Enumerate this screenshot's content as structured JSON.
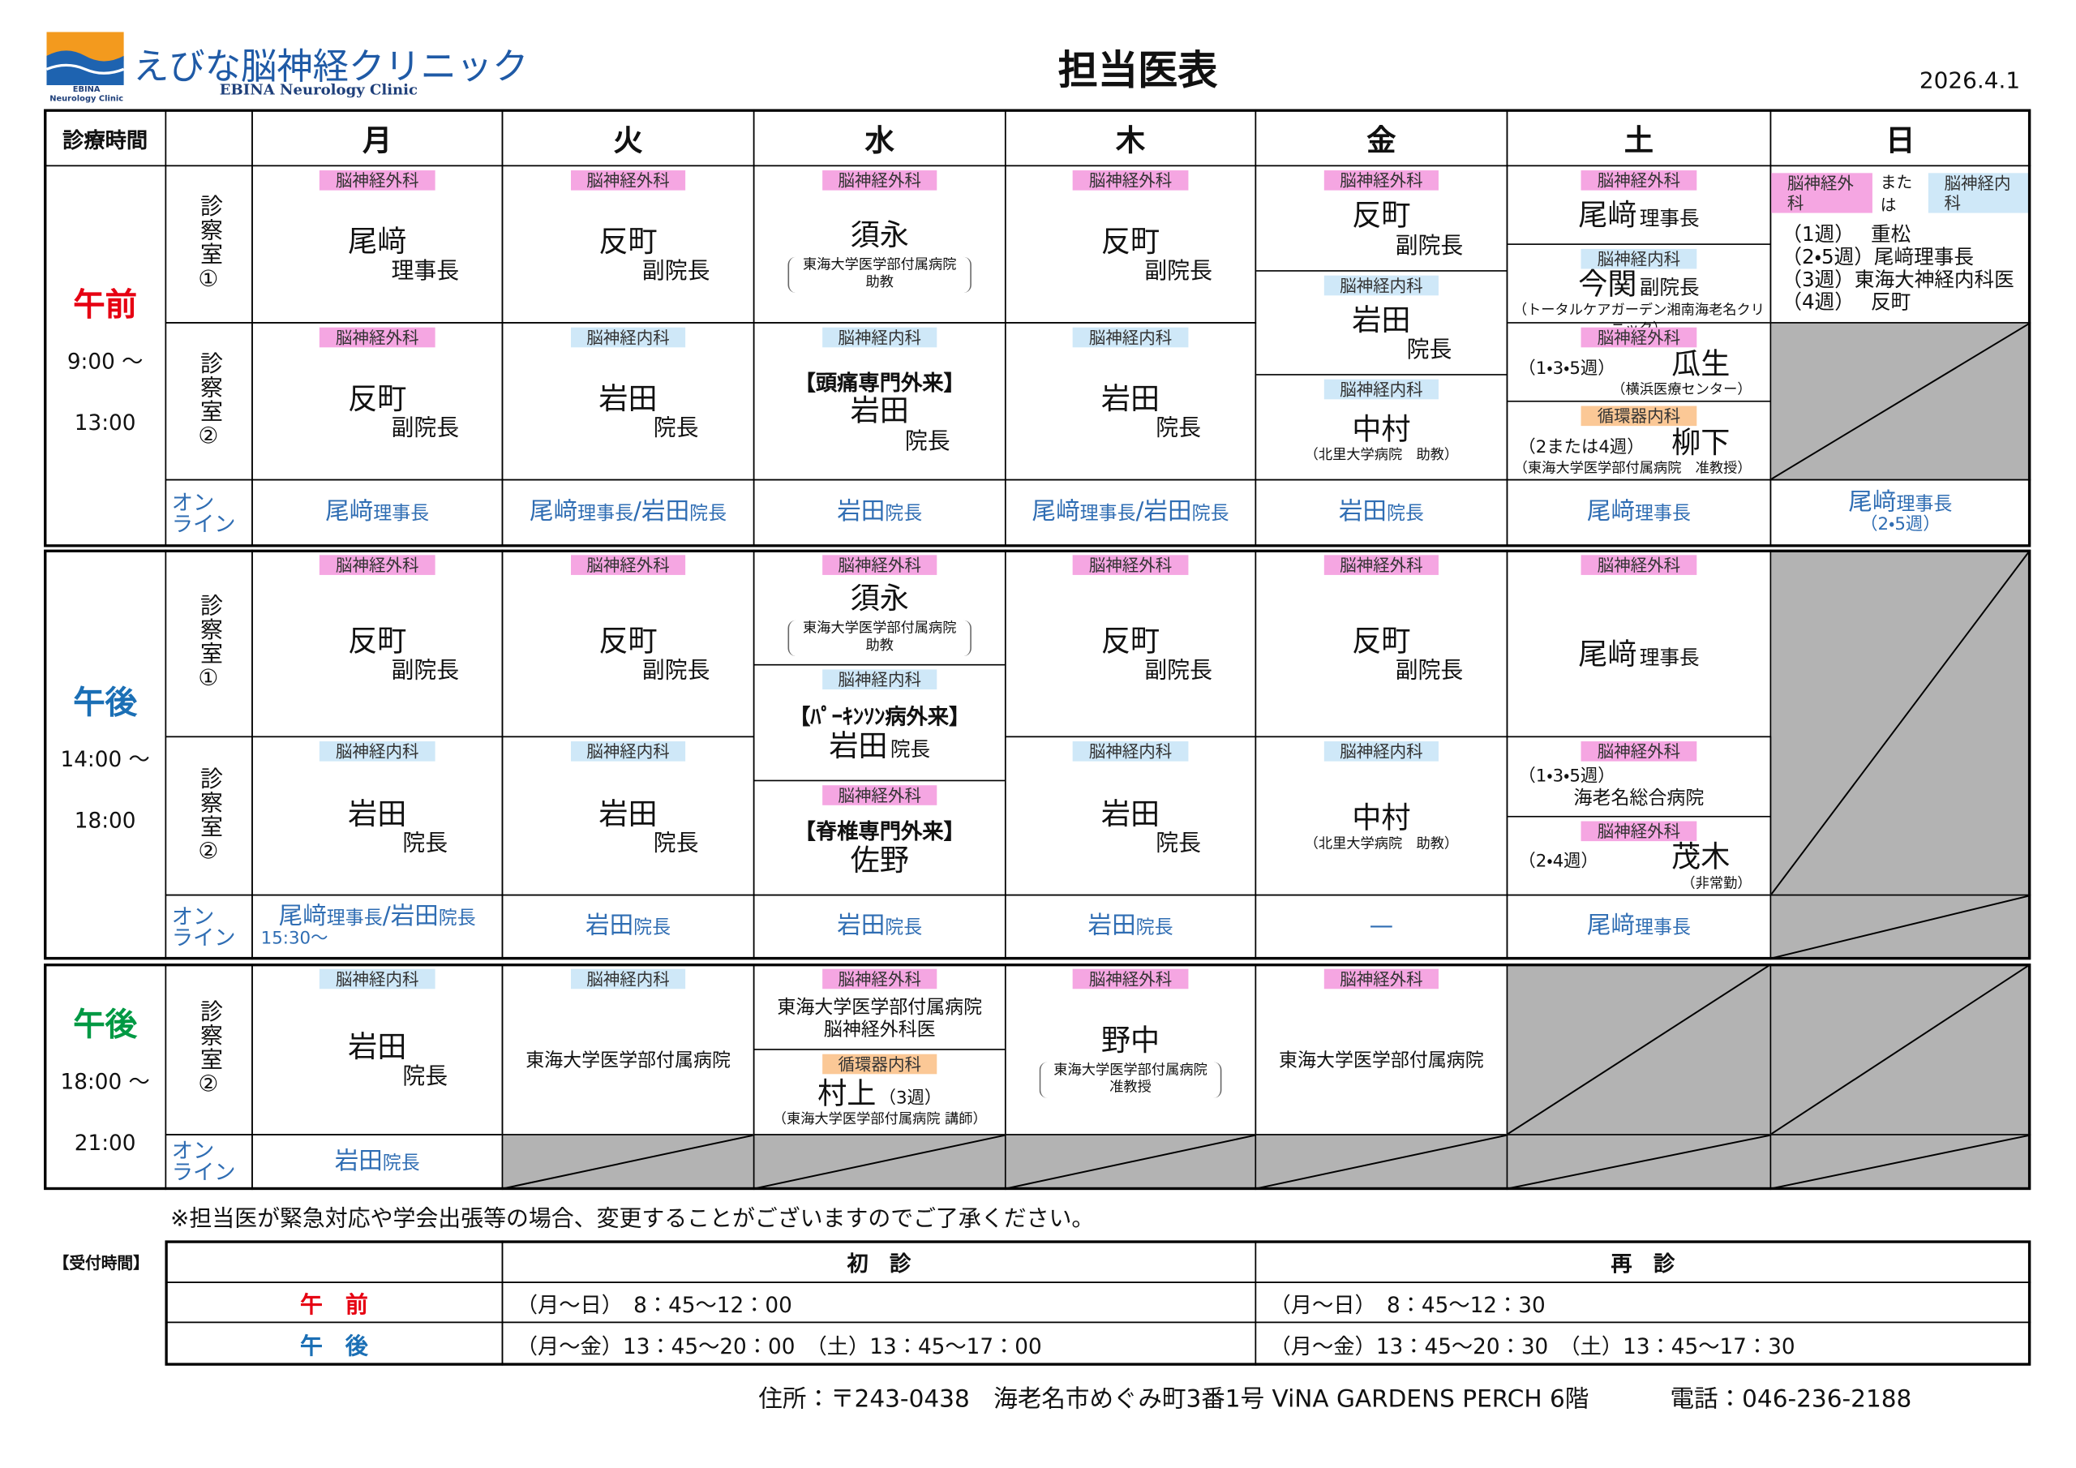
{
  "header": {
    "clinic_name": "えびな脳神経クリニック",
    "clinic_name_en": "EBINA Neurology Clinic",
    "logo_text": [
      "EBINA",
      "Neurology Clinic"
    ],
    "title": "担当医表",
    "date": "2026.4.1"
  },
  "department_colors": {
    "脳神経外科": "#f5a6e2",
    "脳神経内科": "#cfe8f8",
    "循環器内科": "#fbc896"
  },
  "table": {
    "corner": "診療時間",
    "days": [
      "月",
      "火",
      "水",
      "木",
      "金",
      "土",
      "日"
    ],
    "blocks": [
      {
        "label": "午前",
        "color": "#e60012",
        "times": [
          "9:00 ～",
          "13:00"
        ],
        "rooms": [
          {
            "label": "診察室①",
            "cells": [
              {
                "sections": [
                  {
                    "dept": "脳神経外科",
                    "name": "尾﨑",
                    "title": "理事長"
                  }
                ]
              },
              {
                "sections": [
                  {
                    "dept": "脳神経外科",
                    "name": "反町",
                    "title": "副院長"
                  }
                ]
              },
              {
                "sections": [
                  {
                    "dept": "脳神経外科",
                    "name": "須永",
                    "note": [
                      "東海大学医学部付属病院",
                      "助教"
                    ]
                  }
                ]
              },
              {
                "sections": [
                  {
                    "dept": "脳神経外科",
                    "name": "反町",
                    "title": "副院長"
                  }
                ]
              },
              {
                "rowspan": 2,
                "sections": [
                  {
                    "dept": "脳神経外科",
                    "name": "反町",
                    "title": "副院長"
                  },
                  {
                    "dept": "脳神経内科",
                    "name": "岩田",
                    "title": "院長"
                  },
                  {
                    "dept": "脳神経内科",
                    "name": "中村",
                    "note": [
                      "（北里大学病院　助教）"
                    ]
                  }
                ]
              },
              {
                "rowspan": 2,
                "sections": [
                  {
                    "dept": "脳神経外科",
                    "name": "尾﨑",
                    "title_inline": "理事長"
                  },
                  {
                    "dept": "脳神経内科",
                    "name": "今関",
                    "title_inline": "副院長",
                    "note": [
                      "（トータルケアガーデン湘南海老名クリニック）"
                    ]
                  },
                  {
                    "dept": "脳神経外科",
                    "prefix": "（1・3・5週）",
                    "name": "瓜生",
                    "note": [
                      "（横浜医療センター）"
                    ]
                  },
                  {
                    "dept": "循環器内科",
                    "prefix": "（2または4週）",
                    "name": "柳下",
                    "note": [
                      "（東海大学医学部付属病院　准教授）"
                    ]
                  }
                ]
              },
              {
                "sections": [
                  {
                    "dept": "脳神経外科",
                    "or": "または",
                    "dept2": "脳神経内科",
                    "lines": [
                      "（1週）　 重松",
                      "（2・5週）尾﨑理事長",
                      "（3週）東海大神経内科医",
                      "（4週）　 反町"
                    ]
                  }
                ]
              }
            ]
          },
          {
            "label": "診察室②",
            "cells": [
              {
                "sections": [
                  {
                    "dept": "脳神経外科",
                    "name": "反町",
                    "title": "副院長"
                  }
                ]
              },
              {
                "sections": [
                  {
                    "dept": "脳神経内科",
                    "name": "岩田",
                    "title": "院長"
                  }
                ]
              },
              {
                "sections": [
                  {
                    "dept": "脳神経内科",
                    "clinic": "【頭痛専門外来】",
                    "name": "岩田",
                    "title": "院長"
                  }
                ]
              },
              {
                "sections": [
                  {
                    "dept": "脳神経内科",
                    "name": "岩田",
                    "title": "院長"
                  }
                ]
              },
              null,
              null,
              null
            ]
          }
        ],
        "online": {
          "label": [
            "オン",
            "ライン"
          ],
          "cells": [
            {
              "segments": [
                {
                  "name": "尾﨑",
                  "title": "理事長"
                }
              ]
            },
            {
              "segments": [
                {
                  "name": "尾﨑",
                  "title": "理事長"
                },
                {
                  "name": "/"
                },
                {
                  "name": "岩田",
                  "title": "院長"
                }
              ]
            },
            {
              "segments": [
                {
                  "name": "岩田",
                  "title": "院長"
                }
              ]
            },
            {
              "segments": [
                {
                  "name": "尾﨑",
                  "title": "理事長"
                },
                {
                  "name": "/"
                },
                {
                  "name": "岩田",
                  "title": "院長"
                }
              ]
            },
            {
              "segments": [
                {
                  "name": "岩田",
                  "title": "院長"
                }
              ]
            },
            {
              "segments": [
                {
                  "name": "尾﨑",
                  "title": "理事長"
                }
              ]
            },
            {
              "segments": [
                {
                  "name": "尾﨑",
                  "title": "理事長"
                }
              ],
              "note": "（2・5週）"
            }
          ]
        }
      },
      {
        "label": "午後",
        "color": "#1b6fb5",
        "times": [
          "14:00 ～",
          "18:00"
        ],
        "rooms": [
          {
            "label": "診察室①",
            "cells": [
              {
                "sections": [
                  {
                    "dept": "脳神経外科",
                    "name": "反町",
                    "title": "副院長"
                  }
                ]
              },
              {
                "sections": [
                  {
                    "dept": "脳神経外科",
                    "name": "反町",
                    "title": "副院長"
                  }
                ]
              },
              {
                "rowspan": 2,
                "sections": [
                  {
                    "dept": "脳神経外科",
                    "name": "須永",
                    "note": [
                      "東海大学医学部付属病院",
                      "助教"
                    ]
                  },
                  {
                    "dept": "脳神経内科",
                    "clinic": "【ﾊﾟｰｷﾝｿﾝ病外来】",
                    "name": "岩田",
                    "title_inline": "院長"
                  },
                  {
                    "dept": "脳神経外科",
                    "clinic": "【脊椎専門外来】",
                    "name": "佐野"
                  }
                ]
              },
              {
                "sections": [
                  {
                    "dept": "脳神経外科",
                    "name": "反町",
                    "title": "副院長"
                  }
                ]
              },
              {
                "sections": [
                  {
                    "dept": "脳神経外科",
                    "name": "反町",
                    "title": "副院長"
                  }
                ]
              },
              {
                "sections": [
                  {
                    "dept": "脳神経外科",
                    "name": "尾﨑",
                    "title_inline": "理事長"
                  }
                ]
              },
              {
                "rowspan": 2
              }
            ]
          },
          {
            "label": "診察室②",
            "cells": [
              {
                "sections": [
                  {
                    "dept": "脳神経内科",
                    "name": "岩田",
                    "title": "院長"
                  }
                ]
              },
              {
                "sections": [
                  {
                    "dept": "脳神経内科",
                    "name": "岩田",
                    "title": "院長"
                  }
                ]
              },
              null,
              {
                "sections": [
                  {
                    "dept": "脳神経内科",
                    "name": "岩田",
                    "title": "院長"
                  }
                ]
              },
              {
                "sections": [
                  {
                    "dept": "脳神経内科",
                    "name": "中村",
                    "note": [
                      "（北里大学病院　助教）"
                    ]
                  }
                ]
              },
              {
                "sections": [
                  {
                    "dept": "脳神経外科",
                    "prefix": "（1・3・5週）",
                    "text": [
                      "海老名総合病院"
                    ]
                  },
                  {
                    "dept": "脳神経外科",
                    "prefix": "（2・4週）",
                    "name": "茂木",
                    "note": [
                      "（非常勤）"
                    ]
                  }
                ]
              },
              null
            ]
          }
        ],
        "online": {
          "label": [
            "オン",
            "ライン"
          ],
          "cells": [
            {
              "segments": [
                {
                  "name": "尾﨑",
                  "title": "理事長"
                },
                {
                  "name": "/"
                },
                {
                  "name": "岩田",
                  "title": "院長"
                }
              ],
              "note": "15:30～"
            },
            {
              "segments": [
                {
                  "name": "岩田",
                  "title": "院長"
                }
              ]
            },
            {
              "segments": [
                {
                  "name": "岩田",
                  "title": "院長"
                }
              ]
            },
            {
              "segments": [
                {
                  "name": "岩田",
                  "title": "院長"
                }
              ]
            },
            {
              "segments": [
                {
                  "name": "—"
                }
              ]
            },
            {
              "segments": [
                {
                  "name": "尾﨑",
                  "title": "理事長"
                }
              ]
            },
            null
          ]
        }
      },
      {
        "label": "午後",
        "color": "#009944",
        "times": [
          "18:00 ～",
          "21:00"
        ],
        "rooms": [
          {
            "label": "診察室②",
            "cells": [
              {
                "sections": [
                  {
                    "dept": "脳神経内科",
                    "name": "岩田",
                    "title": "院長"
                  }
                ]
              },
              {
                "sections": [
                  {
                    "dept": "脳神経内科",
                    "text": [
                      "東海大学医学部付属病院"
                    ]
                  }
                ]
              },
              {
                "sections": [
                  {
                    "dept": "脳神経外科",
                    "text": [
                      "東海大学医学部付属病院",
                      "脳神経外科医"
                    ]
                  },
                  {
                    "dept": "循環器内科",
                    "name": "村上",
                    "suffix": "（3週）",
                    "note": [
                      "（東海大学医学部付属病院 講師）"
                    ]
                  }
                ]
              },
              {
                "sections": [
                  {
                    "dept": "脳神経外科",
                    "name": "野中",
                    "note": [
                      "東海大学医学部付属病院",
                      "准教授"
                    ]
                  }
                ]
              },
              {
                "sections": [
                  {
                    "dept": "脳神経外科",
                    "text": [
                      "東海大学医学部付属病院"
                    ]
                  }
                ]
              },
              null,
              null
            ]
          }
        ],
        "online": {
          "label": [
            "オン",
            "ライン"
          ],
          "cells": [
            {
              "segments": [
                {
                  "name": "岩田",
                  "title": "院長"
                }
              ]
            },
            null,
            null,
            null,
            null,
            null,
            null
          ]
        }
      }
    ]
  },
  "notice": "※担当医が緊急対応や学会出張等の場合、変更することがございますのでご了承ください。",
  "reception": {
    "label": "【受付時間】",
    "headers": [
      "初　診",
      "再　診"
    ],
    "rows": [
      {
        "label": "午　前",
        "color": "#e60012",
        "values": [
          "（月～日）　8：45～12：00",
          "（月～日）　8：45～12：30"
        ]
      },
      {
        "label": "午　後",
        "color": "#1b6fb5",
        "values": [
          "（月～金）13：45～20：00　（土）13：45～17：00",
          "（月～金）13：45～20：30　（土）13：45～17：30"
        ]
      }
    ]
  },
  "footer": {
    "address": "住所：〒243-0438　海老名市めぐみ町3番1号 ViNA GARDENS PERCH 6階",
    "phone": "電話：046-236-2188"
  }
}
